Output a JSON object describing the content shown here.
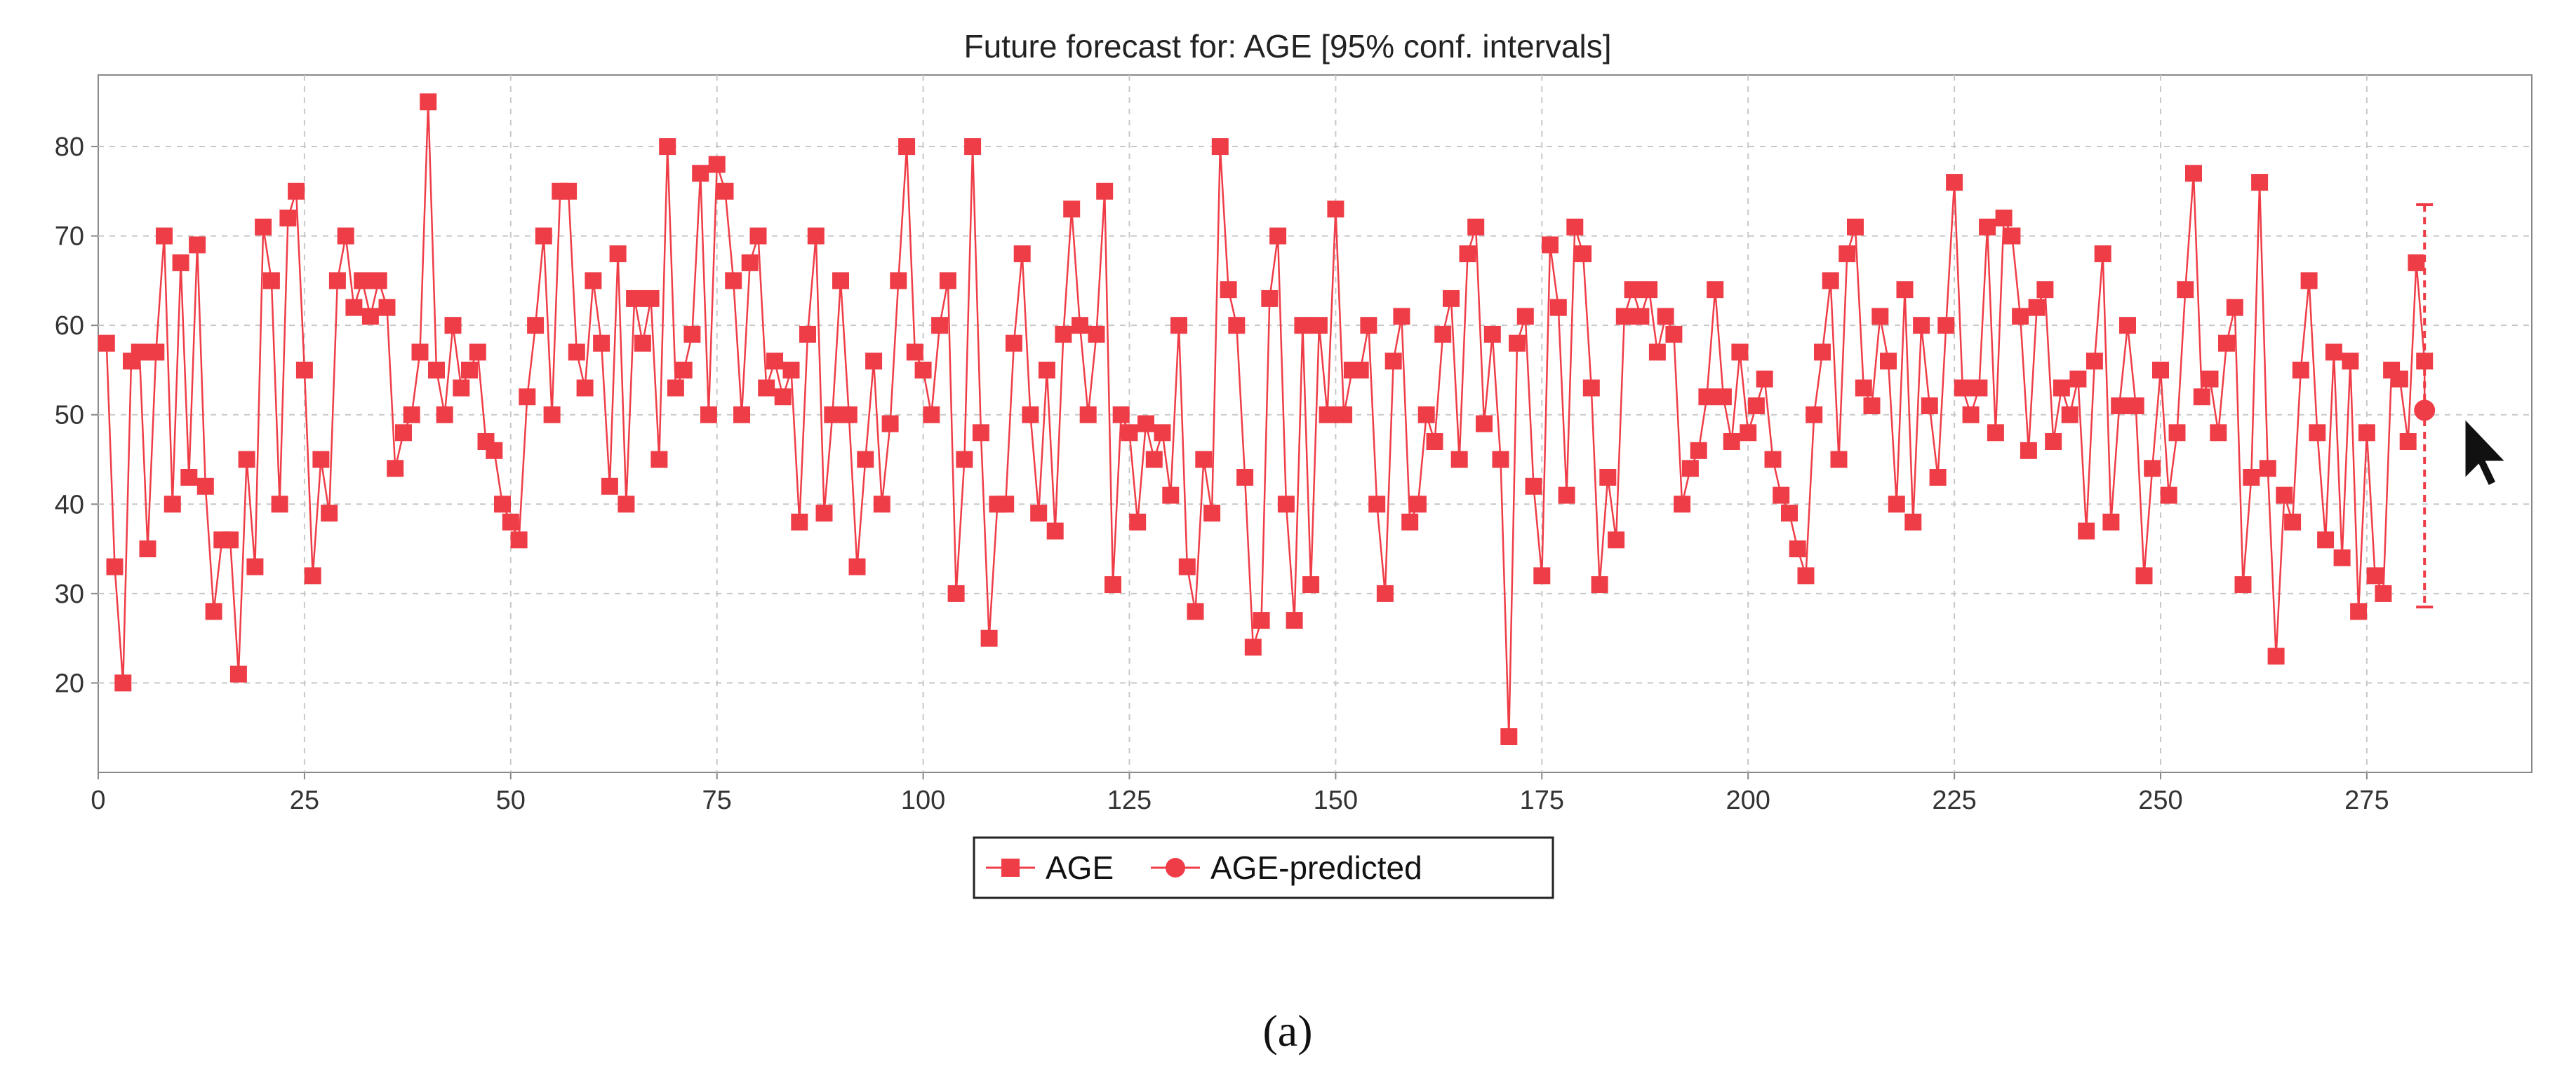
{
  "chart_data": {
    "type": "line",
    "title": "Future forecast for: AGE [95% conf. intervals]",
    "xlabel": "",
    "ylabel": "",
    "xlim": [
      0,
      295
    ],
    "ylim": [
      10,
      88
    ],
    "x_ticks": [
      0,
      25,
      50,
      75,
      100,
      125,
      150,
      175,
      200,
      225,
      250,
      275
    ],
    "y_ticks": [
      20,
      30,
      40,
      50,
      60,
      70,
      80
    ],
    "grid": true,
    "legend_position": "bottom-center",
    "series": [
      {
        "name": "AGE",
        "marker": "square",
        "color": "#ef3d47",
        "x_start": 1,
        "values": [
          58,
          33,
          20,
          56,
          57,
          35,
          57,
          70,
          40,
          67,
          43,
          69,
          42,
          28,
          36,
          36,
          21,
          45,
          33,
          71,
          65,
          40,
          72,
          75,
          55,
          32,
          45,
          39,
          65,
          70,
          62,
          65,
          61,
          65,
          62,
          44,
          48,
          50,
          57,
          85,
          55,
          50,
          60,
          53,
          55,
          57,
          47,
          46,
          40,
          38,
          36,
          52,
          60,
          70,
          50,
          75,
          75,
          57,
          53,
          65,
          58,
          42,
          68,
          40,
          63,
          58,
          63,
          45,
          80,
          53,
          55,
          59,
          77,
          50,
          78,
          75,
          65,
          50,
          67,
          70,
          53,
          56,
          52,
          55,
          38,
          59,
          70,
          39,
          50,
          65,
          50,
          33,
          45,
          56,
          40,
          49,
          65,
          80,
          57,
          55,
          50,
          60,
          65,
          30,
          45,
          80,
          48,
          25,
          40,
          40,
          58,
          68,
          50,
          39,
          55,
          37,
          59,
          73,
          60,
          50,
          59,
          75,
          31,
          50,
          48,
          38,
          49,
          45,
          48,
          41,
          60,
          33,
          28,
          45,
          39,
          80,
          64,
          60,
          43,
          24,
          27,
          63,
          70,
          40,
          27,
          60,
          31,
          60,
          50,
          73,
          50,
          55,
          55,
          60,
          40,
          30,
          56,
          61,
          38,
          40,
          50,
          47,
          59,
          63,
          45,
          68,
          71,
          49,
          59,
          45,
          14,
          58,
          61,
          42,
          32,
          69,
          62,
          41,
          71,
          68,
          53,
          31,
          43,
          36,
          61,
          64,
          61,
          64,
          57,
          61,
          59,
          40,
          44,
          46,
          52,
          64,
          52,
          47,
          57,
          48,
          51,
          54,
          45,
          41,
          39,
          35,
          32,
          50,
          57,
          65,
          45,
          68,
          71,
          53,
          51,
          61,
          56,
          40,
          64,
          38,
          60,
          51,
          43,
          60,
          76,
          53,
          50,
          53,
          71,
          48,
          72,
          70,
          61,
          46,
          62,
          64,
          47,
          53,
          50,
          54,
          37,
          56,
          68,
          38,
          51,
          60,
          51,
          32,
          44,
          55,
          41,
          48,
          64,
          77,
          52,
          54,
          48,
          58,
          62,
          31,
          43,
          76,
          44,
          23,
          41,
          38,
          55,
          65,
          48,
          36,
          57,
          34,
          56,
          28,
          48,
          32,
          30,
          55,
          54,
          47,
          67,
          56
        ]
      },
      {
        "name": "AGE-predicted",
        "marker": "circle",
        "color": "#ef3d47",
        "x": [
          282
        ],
        "values": [
          50.5
        ],
        "ci_lower": [
          28.5
        ],
        "ci_upper": [
          73.5
        ]
      }
    ]
  },
  "caption": "(a)"
}
